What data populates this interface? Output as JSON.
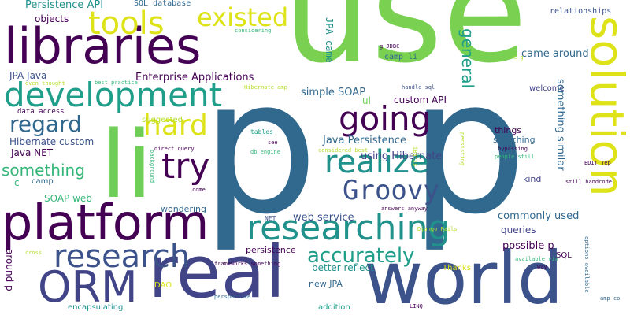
{
  "palette": {
    "purple": "#440154",
    "indigo": "#3b528b",
    "blue": "#31688e",
    "slate": "#414487",
    "teal": "#21918c",
    "sea": "#1f9e89",
    "green": "#35b779",
    "lime": "#6ece58",
    "grass": "#7ad151",
    "yellow": "#dde318",
    "olive": "#b5de2b"
  },
  "words": [
    {
      "text": "use"
    },
    {
      "text": "p"
    },
    {
      "text": "p"
    },
    {
      "text": "li"
    },
    {
      "text": "real"
    },
    {
      "text": "world"
    },
    {
      "text": "platform"
    },
    {
      "text": "libraries"
    },
    {
      "text": "solution"
    },
    {
      "text": "researching"
    },
    {
      "text": "development"
    },
    {
      "text": "research"
    },
    {
      "text": "realize"
    },
    {
      "text": "Groovy"
    },
    {
      "text": "ORM"
    },
    {
      "text": "going"
    },
    {
      "text": "accurately"
    },
    {
      "text": "try"
    },
    {
      "text": "tools"
    },
    {
      "text": "existed"
    },
    {
      "text": "hard"
    },
    {
      "text": "regard"
    },
    {
      "text": "something"
    },
    {
      "text": "general"
    },
    {
      "text": "Persistence API"
    },
    {
      "text": "SQL database"
    },
    {
      "text": "relationships"
    },
    {
      "text": "objects"
    },
    {
      "text": "considering"
    },
    {
      "text": "JPA came"
    },
    {
      "text": "came around"
    },
    {
      "text": "camp li"
    },
    {
      "text": "Enterprise Applications"
    },
    {
      "text": "JPA Java"
    },
    {
      "text": "even thought"
    },
    {
      "text": "best practice"
    },
    {
      "text": "Hibernate amp"
    },
    {
      "text": "handle sql"
    },
    {
      "text": "welcome"
    },
    {
      "text": "data access"
    },
    {
      "text": "simple SOAP"
    },
    {
      "text": "custom API"
    },
    {
      "text": "something similar"
    },
    {
      "text": "suggested"
    },
    {
      "text": "things"
    },
    {
      "text": "searching"
    },
    {
      "text": "bypassing"
    },
    {
      "text": "people still"
    },
    {
      "text": "EDIT Yep"
    },
    {
      "text": "still handcode"
    },
    {
      "text": "Hibernate custom"
    },
    {
      "text": "Java NET"
    },
    {
      "text": "Java Persistence"
    },
    {
      "text": "using Hibernate"
    },
    {
      "text": "tables"
    },
    {
      "text": "see"
    },
    {
      "text": "db engine"
    },
    {
      "text": "considered best"
    },
    {
      "text": "direct query"
    },
    {
      "text": "kind"
    },
    {
      "text": "SOAP web"
    },
    {
      "text": "wondering"
    },
    {
      "text": "web service"
    },
    {
      "text": "NET"
    },
    {
      "text": "answers anyway"
    },
    {
      "text": "commonly used"
    },
    {
      "text": "queries"
    },
    {
      "text": "possible p"
    },
    {
      "text": "persistence"
    },
    {
      "text": "better reflect"
    },
    {
      "text": "Thanks"
    },
    {
      "text": "SQL"
    },
    {
      "text": "frameworks something"
    },
    {
      "text": "new JPA"
    },
    {
      "text": "DAO"
    },
    {
      "text": "encapsulating"
    },
    {
      "text": "addition"
    },
    {
      "text": "perspective"
    },
    {
      "text": "available via"
    },
    {
      "text": "way"
    },
    {
      "text": "amp co"
    },
    {
      "text": "LINQ"
    },
    {
      "text": "options available"
    },
    {
      "text": "around p"
    },
    {
      "text": "cross"
    },
    {
      "text": "Django Rails"
    },
    {
      "text": "camp"
    },
    {
      "text": "come"
    },
    {
      "text": "background"
    },
    {
      "text": "persisting"
    },
    {
      "text": "iBatis"
    },
    {
      "text": "ul"
    },
    {
      "text": "g JDBC"
    },
    {
      "text": "e g"
    },
    {
      "text": "c"
    }
  ]
}
